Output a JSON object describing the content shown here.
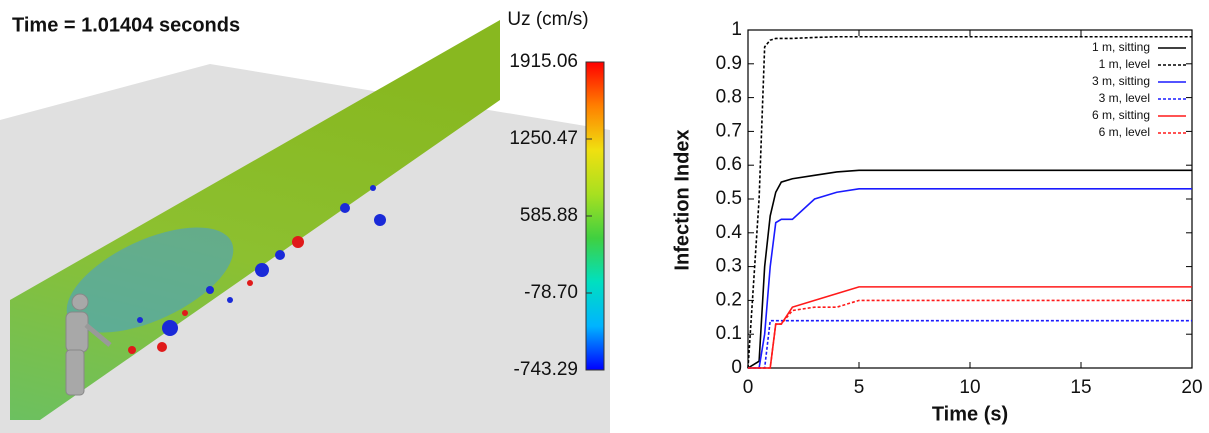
{
  "chart_data": [
    {
      "type": "colorbar",
      "title": "Time = 1.01404 seconds",
      "label": "Uz (cm/s)",
      "ylim": [
        -743.29,
        1915.06
      ],
      "yticks": [
        -743.29,
        {
          "value": -78.7,
          "label": "-78.70"
        },
        585.88,
        1250.47,
        1915.06
      ],
      "colors": [
        "#0000ff",
        "#00b4ff",
        "#00e0c0",
        "#40d040",
        "#a8e020",
        "#f0e010",
        "#ff8000",
        "#ff0000"
      ]
    },
    {
      "type": "line",
      "xlabel": "Time (s)",
      "ylabel": "Infection Index",
      "xlim": [
        0,
        20
      ],
      "xticks": [
        0,
        5,
        10,
        15,
        20
      ],
      "ylim": [
        0,
        1
      ],
      "yticks": [
        0,
        0.1,
        0.2,
        0.3,
        0.4,
        0.5,
        0.6,
        0.7,
        0.8,
        0.9,
        1
      ],
      "legend": "upper right",
      "x": [
        0,
        0.5,
        0.75,
        1,
        1.25,
        1.5,
        2,
        3,
        4,
        5,
        20
      ],
      "series": [
        {
          "name": "1 m, sitting",
          "color": "#000000",
          "dashed": false,
          "values": [
            0,
            0.02,
            0.3,
            0.45,
            0.52,
            0.55,
            0.56,
            0.57,
            0.58,
            0.585,
            0.585
          ]
        },
        {
          "name": "1 m, level",
          "color": "#000000",
          "dashed": true,
          "values": [
            0,
            0.5,
            0.95,
            0.97,
            0.975,
            0.975,
            0.975,
            0.978,
            0.98,
            0.98,
            0.98
          ]
        },
        {
          "name": "3 m, sitting",
          "color": "#1a1aff",
          "dashed": false,
          "values": [
            0,
            0,
            0.1,
            0.3,
            0.43,
            0.44,
            0.44,
            0.5,
            0.52,
            0.53,
            0.53
          ]
        },
        {
          "name": "3 m, level",
          "color": "#1a1aff",
          "dashed": true,
          "values": [
            0,
            0,
            0,
            0.14,
            0.14,
            0.14,
            0.14,
            0.14,
            0.14,
            0.14,
            0.14
          ]
        },
        {
          "name": "6 m, sitting",
          "color": "#ff1a1a",
          "dashed": false,
          "values": [
            0,
            0,
            0,
            0,
            0.13,
            0.13,
            0.18,
            0.2,
            0.22,
            0.24,
            0.24
          ]
        },
        {
          "name": "6 m, level",
          "color": "#ff1a1a",
          "dashed": true,
          "values": [
            0,
            0,
            0,
            0,
            0.13,
            0.13,
            0.17,
            0.18,
            0.18,
            0.2,
            0.2
          ]
        }
      ]
    }
  ]
}
